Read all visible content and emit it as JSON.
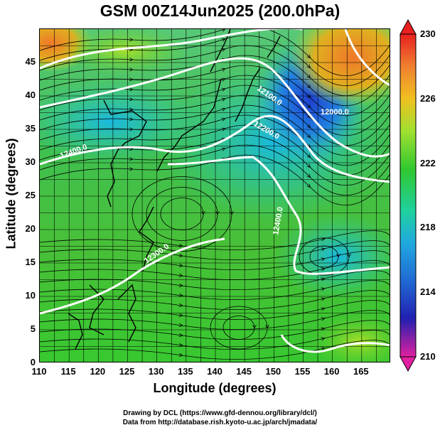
{
  "title": "GSM 00Z14Jun2025 (200.0hPa)",
  "axes": {
    "xlabel": "Longitude (degrees)",
    "ylabel": "Latitude  (degrees)",
    "xticks": [
      "110",
      "115",
      "120",
      "125",
      "130",
      "135",
      "140",
      "145",
      "150",
      "155",
      "160",
      "165"
    ],
    "yticks": [
      "45",
      "40",
      "35",
      "30",
      "25",
      "20",
      "15",
      "10",
      "5",
      "0"
    ]
  },
  "map_data": {
    "type": "streamline-map",
    "lon_range": [
      110,
      170
    ],
    "lat_range": [
      0,
      50
    ],
    "grid": true,
    "contour_labels": [
      "12400.0",
      "12300.0",
      "12200.0",
      "12100.0",
      "12000.0",
      "12400.0"
    ],
    "colors": {
      "green": "#3cc83c",
      "cyan": "#22cccc",
      "blue": "#2050d0",
      "orange": "#f08030",
      "yellowgreen": "#b8e030"
    }
  },
  "colorbar": {
    "ticks": [
      "230",
      "226",
      "222",
      "218",
      "214",
      "210"
    ],
    "range": [
      210,
      230
    ]
  },
  "credits": [
    "Drawing by DCL (https://www.gfd-dennou.org/library/dcl/)",
    "Data from http://database.rish.kyoto-u.ac.jp/arch/jmadata/"
  ]
}
